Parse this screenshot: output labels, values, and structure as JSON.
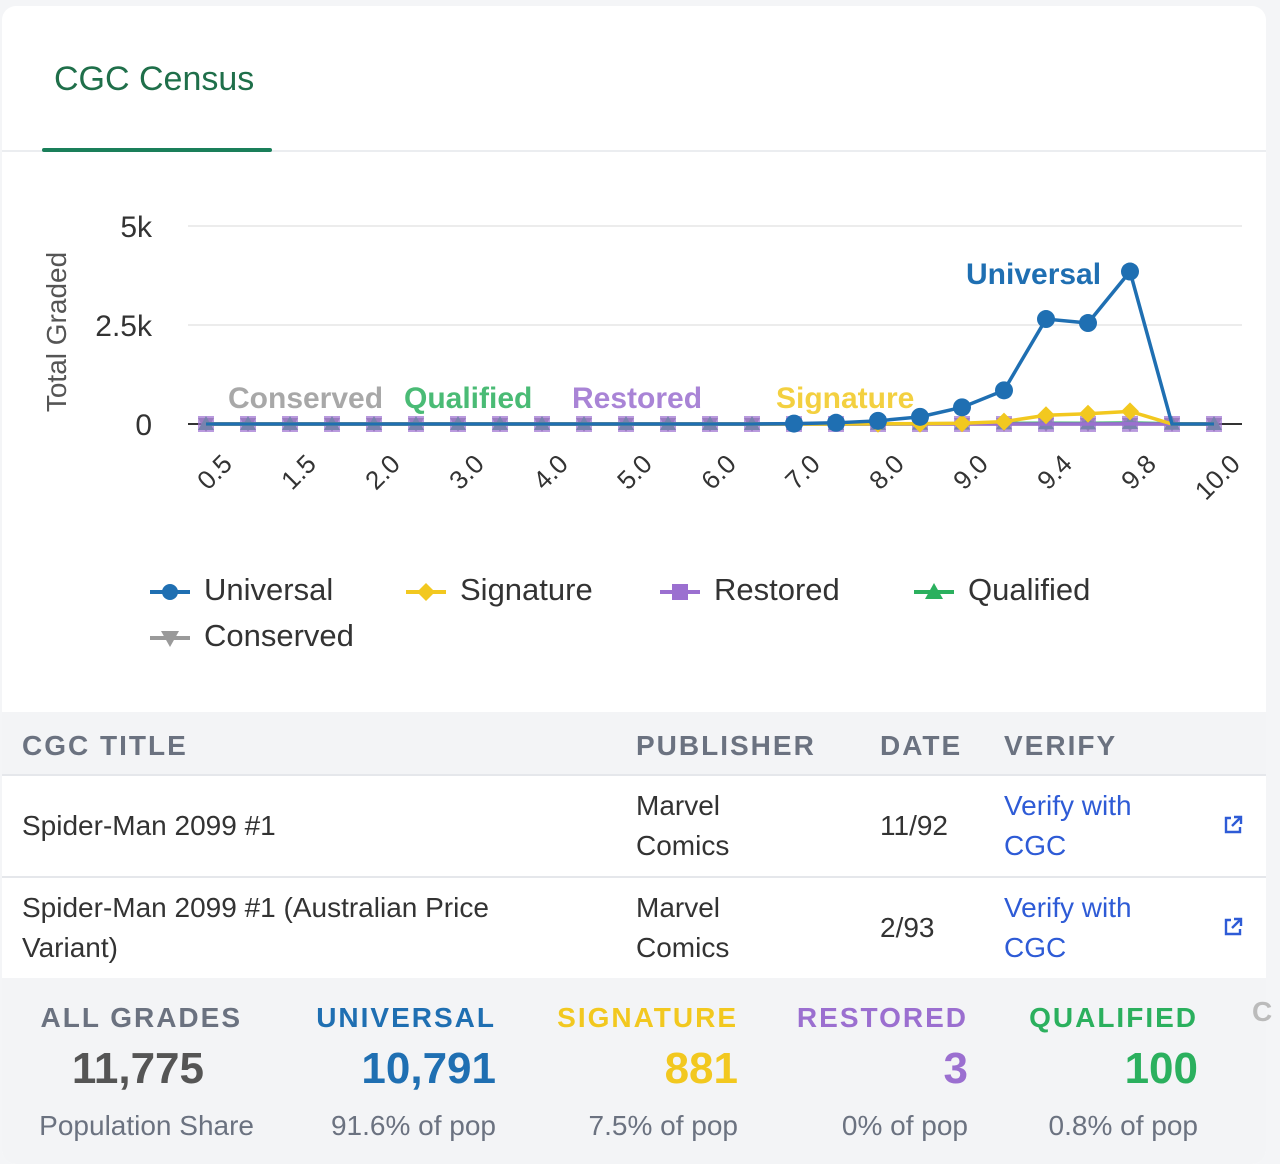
{
  "tab": {
    "label": "CGC Census"
  },
  "chart_data": {
    "type": "line",
    "ylabel": "Total Graded",
    "y_ticks": [
      "5k",
      "2.5k",
      "0"
    ],
    "ylim": [
      0,
      5000
    ],
    "x": [
      "0.5",
      "1.0",
      "1.5",
      "1.8",
      "2.0",
      "2.5",
      "3.0",
      "3.5",
      "4.0",
      "4.5",
      "5.0",
      "5.5",
      "6.0",
      "6.5",
      "7.0",
      "7.5",
      "8.0",
      "8.5",
      "9.0",
      "9.2",
      "9.4",
      "9.6",
      "9.8",
      "9.9",
      "10.0"
    ],
    "x_tick_labels": [
      "0.5",
      "1.5",
      "2.0",
      "3.0",
      "4.0",
      "5.0",
      "6.0",
      "7.0",
      "8.0",
      "9.0",
      "9.4",
      "9.8",
      "10.0"
    ],
    "series": [
      {
        "name": "Universal",
        "color": "#1f6fb2",
        "marker": "circle",
        "values": [
          0,
          0,
          0,
          0,
          0,
          0,
          0,
          0,
          0,
          0,
          0,
          0,
          0,
          0,
          10,
          30,
          80,
          180,
          420,
          850,
          2650,
          2550,
          3850,
          0,
          0
        ]
      },
      {
        "name": "Signature",
        "color": "#f2c81f",
        "marker": "diamond",
        "values": [
          0,
          0,
          0,
          0,
          0,
          0,
          0,
          0,
          0,
          0,
          0,
          0,
          0,
          0,
          0,
          0,
          5,
          10,
          20,
          60,
          220,
          260,
          320,
          0,
          0
        ]
      },
      {
        "name": "Restored",
        "color": "#9b6fd0",
        "marker": "square",
        "values": [
          0,
          0,
          0,
          0,
          0,
          0,
          0,
          0,
          0,
          0,
          0,
          0,
          0,
          0,
          0,
          0,
          0,
          0,
          0,
          0,
          1,
          0,
          2,
          0,
          0
        ]
      },
      {
        "name": "Qualified",
        "color": "#2bb05e",
        "marker": "triangle",
        "values": [
          0,
          0,
          0,
          0,
          0,
          0,
          0,
          0,
          0,
          0,
          0,
          0,
          0,
          0,
          0,
          0,
          2,
          5,
          10,
          15,
          20,
          15,
          25,
          5,
          0
        ]
      },
      {
        "name": "Conserved",
        "color": "#9a9a9a",
        "marker": "triangle-down",
        "values": [
          0,
          0,
          0,
          0,
          0,
          0,
          0,
          0,
          0,
          0,
          0,
          0,
          0,
          0,
          0,
          0,
          0,
          0,
          0,
          0,
          0,
          0,
          0,
          0,
          0
        ]
      }
    ],
    "inline_labels": [
      "Conserved",
      "Qualified",
      "Restored",
      "Signature",
      "Universal"
    ],
    "grid": true,
    "legend": "bottom"
  },
  "table": {
    "headers": [
      "CGC TITLE",
      "PUBLISHER",
      "DATE",
      "VERIFY"
    ],
    "rows": [
      {
        "title": "Spider-Man 2099 #1",
        "publisher": "Marvel Comics",
        "date": "11/92",
        "verify": "Verify with CGC"
      },
      {
        "title": "Spider-Man 2099 #1 (Australian Price Variant)",
        "publisher": "Marvel Comics",
        "date": "2/93",
        "verify": "Verify with CGC"
      }
    ],
    "external_icon": "external-link-icon"
  },
  "stats": [
    {
      "label": "ALL GRADES",
      "value": "11,775",
      "sub": "Population Share",
      "color": "#6b7280",
      "value_color": "#555555"
    },
    {
      "label": "UNIVERSAL",
      "value": "10,791",
      "sub": "91.6% of pop",
      "color": "#1f6fb2",
      "value_color": "#1f6fb2"
    },
    {
      "label": "SIGNATURE",
      "value": "881",
      "sub": "7.5% of pop",
      "color": "#f2c81f",
      "value_color": "#f2c81f"
    },
    {
      "label": "RESTORED",
      "value": "3",
      "sub": "0% of pop",
      "color": "#9b6fd0",
      "value_color": "#9b6fd0"
    },
    {
      "label": "QUALIFIED",
      "value": "100",
      "sub": "0.8% of pop",
      "color": "#2bb05e",
      "value_color": "#2bb05e"
    }
  ]
}
